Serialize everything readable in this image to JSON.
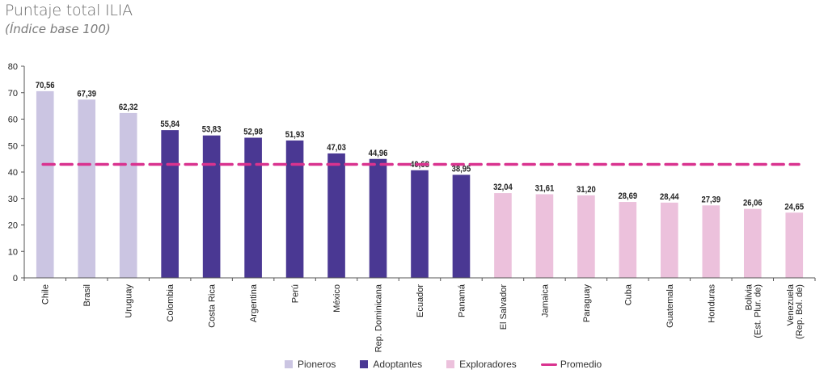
{
  "header": {
    "title": "Puntaje total ILIA",
    "subtitle": "(Índice base 100)"
  },
  "chart_data": {
    "type": "bar",
    "title": "Puntaje total ILIA",
    "subtitle": "(Índice base 100)",
    "xlabel": "",
    "ylabel": "",
    "ylim": [
      0,
      80
    ],
    "yticks": [
      0,
      10,
      20,
      30,
      40,
      50,
      60,
      70,
      80
    ],
    "grid": false,
    "legend_position": "bottom-center",
    "categories": [
      "Chile",
      "Brasil",
      "Uruguay",
      "Colombia",
      "Costa Rica",
      "Argentina",
      "Perú",
      "México",
      "Rep. Dominicana",
      "Ecuador",
      "Panamá",
      "El Salvador",
      "Jamaica",
      "Paraguay",
      "Cuba",
      "Guatemala",
      "Honduras",
      "Bolivia (Est. Plur. de)",
      "Venezuela (Rep. Bol. de)"
    ],
    "category_lines": [
      [
        "Chile"
      ],
      [
        "Brasil"
      ],
      [
        "Uruguay"
      ],
      [
        "Colombia"
      ],
      [
        "Costa Rica"
      ],
      [
        "Argentina"
      ],
      [
        "Perú"
      ],
      [
        "México"
      ],
      [
        "Rep. Dominicana"
      ],
      [
        "Ecuador"
      ],
      [
        "Panamá"
      ],
      [
        "El Salvador"
      ],
      [
        "Jamaica"
      ],
      [
        "Paraguay"
      ],
      [
        "Cuba"
      ],
      [
        "Guatemala"
      ],
      [
        "Honduras"
      ],
      [
        "Bolivia",
        "(Est. Plur. de)"
      ],
      [
        "Venezuela",
        "(Rep. Bol. de)"
      ]
    ],
    "values": [
      70.56,
      67.39,
      62.32,
      55.84,
      53.83,
      52.98,
      51.93,
      47.03,
      44.96,
      40.68,
      38.95,
      32.04,
      31.61,
      31.2,
      28.69,
      28.44,
      27.39,
      26.06,
      24.65
    ],
    "value_labels": [
      "70,56",
      "67,39",
      "62,32",
      "55,84",
      "53,83",
      "52,98",
      "51,93",
      "47,03",
      "44,96",
      "40,68",
      "38,95",
      "32,04",
      "31,61",
      "31,20",
      "28,69",
      "28,44",
      "27,39",
      "26,06",
      "24,65"
    ],
    "groups": [
      "Pioneros",
      "Pioneros",
      "Pioneros",
      "Adoptantes",
      "Adoptantes",
      "Adoptantes",
      "Adoptantes",
      "Adoptantes",
      "Adoptantes",
      "Adoptantes",
      "Adoptantes",
      "Exploradores",
      "Exploradores",
      "Exploradores",
      "Exploradores",
      "Exploradores",
      "Exploradores",
      "Exploradores",
      "Exploradores"
    ],
    "average": {
      "name": "Promedio",
      "value": 42.9,
      "style": "dashed"
    },
    "legend": [
      {
        "name": "Pioneros",
        "type": "bar",
        "color": "#cbc5e2"
      },
      {
        "name": "Adoptantes",
        "type": "bar",
        "color": "#4a3893"
      },
      {
        "name": "Exploradores",
        "type": "bar",
        "color": "#ecc1dc"
      },
      {
        "name": "Promedio",
        "type": "line",
        "color": "#d9338f"
      }
    ],
    "colors": {
      "Pioneros": "#cbc5e2",
      "Adoptantes": "#4a3893",
      "Exploradores": "#ecc1dc",
      "Promedio": "#d9338f",
      "axis": "#555555"
    }
  }
}
